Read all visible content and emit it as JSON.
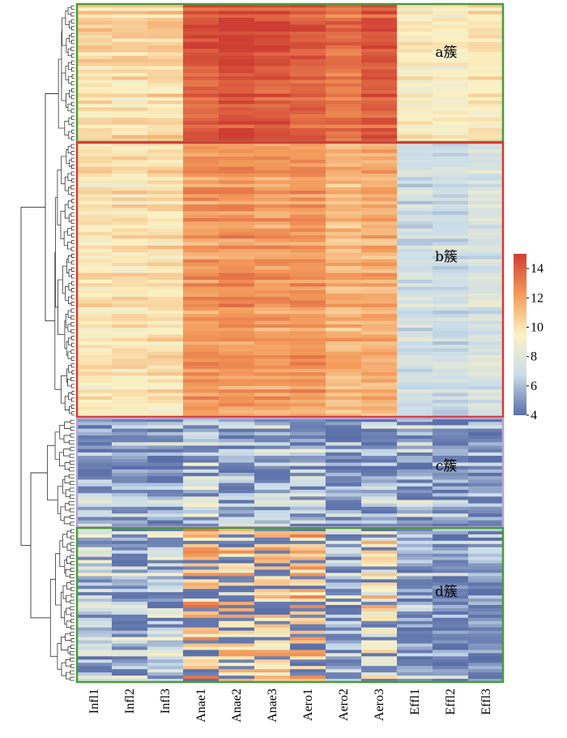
{
  "chart_data": {
    "type": "heatmap",
    "columns": [
      "Infl1",
      "Infl2",
      "Infl3",
      "Anae1",
      "Anae2",
      "Anae3",
      "Aero1",
      "Aero2",
      "Aero3",
      "Effl1",
      "Effl2",
      "Effl3"
    ],
    "color_scale": {
      "min": 4,
      "max": 15,
      "ticks": [
        4,
        6,
        8,
        10,
        12,
        14
      ],
      "colors": [
        "#5a6ea8",
        "#c9dcea",
        "#fbf2c4",
        "#f39a5a",
        "#cf3e32"
      ]
    },
    "clusters": [
      {
        "label": "a簇",
        "border_color": "#4a9b3a",
        "rows": 40,
        "profile": [
          10.2,
          10.2,
          10.4,
          14.2,
          14.6,
          14.3,
          14.0,
          13.4,
          14.1,
          9.6,
          9.4,
          9.7
        ]
      },
      {
        "label": "b簇",
        "border_color": "#d23a36",
        "rows": 80,
        "profile": [
          9.8,
          9.9,
          10.0,
          12.2,
          12.4,
          12.1,
          12.3,
          11.3,
          11.6,
          7.2,
          7.0,
          7.5
        ]
      },
      {
        "label": "c簇",
        "border_color": "#b7a3d6",
        "rows": 32,
        "profile": [
          6.2,
          5.2,
          5.6,
          7.0,
          6.4,
          6.2,
          6.6,
          5.2,
          5.8,
          6.0,
          5.4,
          5.2
        ]
      },
      {
        "label": "d簇",
        "border_color": "#4a9b3a",
        "rows": 48,
        "profile": [
          7.2,
          6.8,
          7.4,
          11.4,
          10.6,
          10.8,
          11.2,
          7.0,
          9.8,
          5.8,
          5.6,
          5.6
        ]
      }
    ]
  }
}
